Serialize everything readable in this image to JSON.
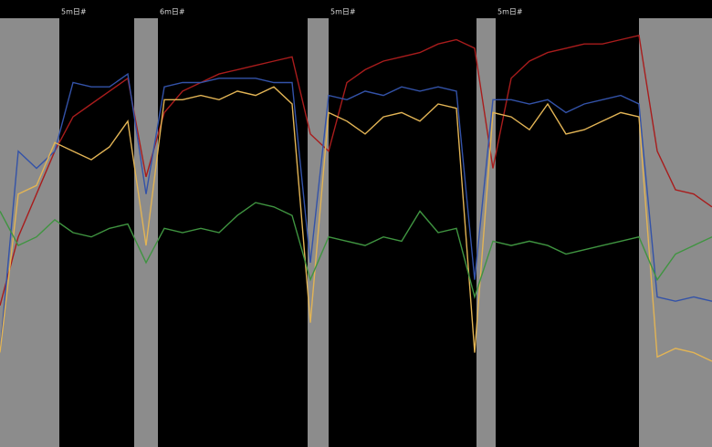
{
  "chart_data": {
    "type": "line",
    "background": "#000000",
    "shaded_regions": [
      [
        0,
        65
      ],
      [
        147,
        173
      ],
      [
        337,
        360
      ],
      [
        522,
        543
      ],
      [
        700,
        780
      ]
    ],
    "shade_color": "#8c8c8c",
    "segment_labels": [
      "5m日#",
      "6m日#",
      "5m日#",
      "5m日#"
    ],
    "xlim": [
      0,
      780
    ],
    "ylim": [
      0,
      100
    ],
    "x": [
      0,
      20,
      40,
      60,
      80,
      100,
      120,
      140,
      160,
      180,
      200,
      220,
      240,
      260,
      280,
      300,
      320,
      340,
      360,
      380,
      400,
      420,
      440,
      460,
      480,
      500,
      520,
      540,
      560,
      580,
      600,
      620,
      640,
      660,
      680,
      700,
      720,
      740,
      760,
      780
    ],
    "series": [
      {
        "name": "red",
        "color": "#a81c1c",
        "values": [
          33,
          49,
          59,
          69,
          77,
          80,
          83,
          86,
          63,
          78,
          83,
          85,
          87,
          88,
          89,
          90,
          91,
          73,
          69,
          85,
          88,
          90,
          91,
          92,
          94,
          95,
          93,
          65,
          86,
          90,
          92,
          93,
          94,
          94,
          95,
          96,
          69,
          60,
          59,
          56
        ]
      },
      {
        "name": "blue",
        "color": "#3352a8",
        "values": [
          22,
          69,
          65,
          69,
          85,
          84,
          84,
          87,
          59,
          84,
          85,
          85,
          86,
          86,
          86,
          85,
          85,
          43,
          82,
          81,
          83,
          82,
          84,
          83,
          84,
          83,
          39,
          81,
          81,
          80,
          81,
          78,
          80,
          81,
          82,
          80,
          35,
          34,
          35,
          34
        ]
      },
      {
        "name": "yellow",
        "color": "#e2b455",
        "values": [
          22,
          59,
          61,
          71,
          69,
          67,
          70,
          76,
          47,
          81,
          81,
          82,
          81,
          83,
          82,
          84,
          80,
          29,
          78,
          76,
          73,
          77,
          78,
          76,
          80,
          79,
          22,
          78,
          77,
          74,
          80,
          73,
          74,
          76,
          78,
          77,
          21,
          23,
          22,
          20
        ]
      },
      {
        "name": "green",
        "color": "#3f9440",
        "values": [
          55,
          47,
          49,
          53,
          50,
          49,
          51,
          52,
          43,
          51,
          50,
          51,
          50,
          54,
          57,
          56,
          54,
          39,
          49,
          48,
          47,
          49,
          48,
          55,
          50,
          51,
          35,
          48,
          47,
          48,
          47,
          45,
          46,
          47,
          48,
          49,
          39,
          45,
          47,
          49
        ]
      }
    ]
  }
}
